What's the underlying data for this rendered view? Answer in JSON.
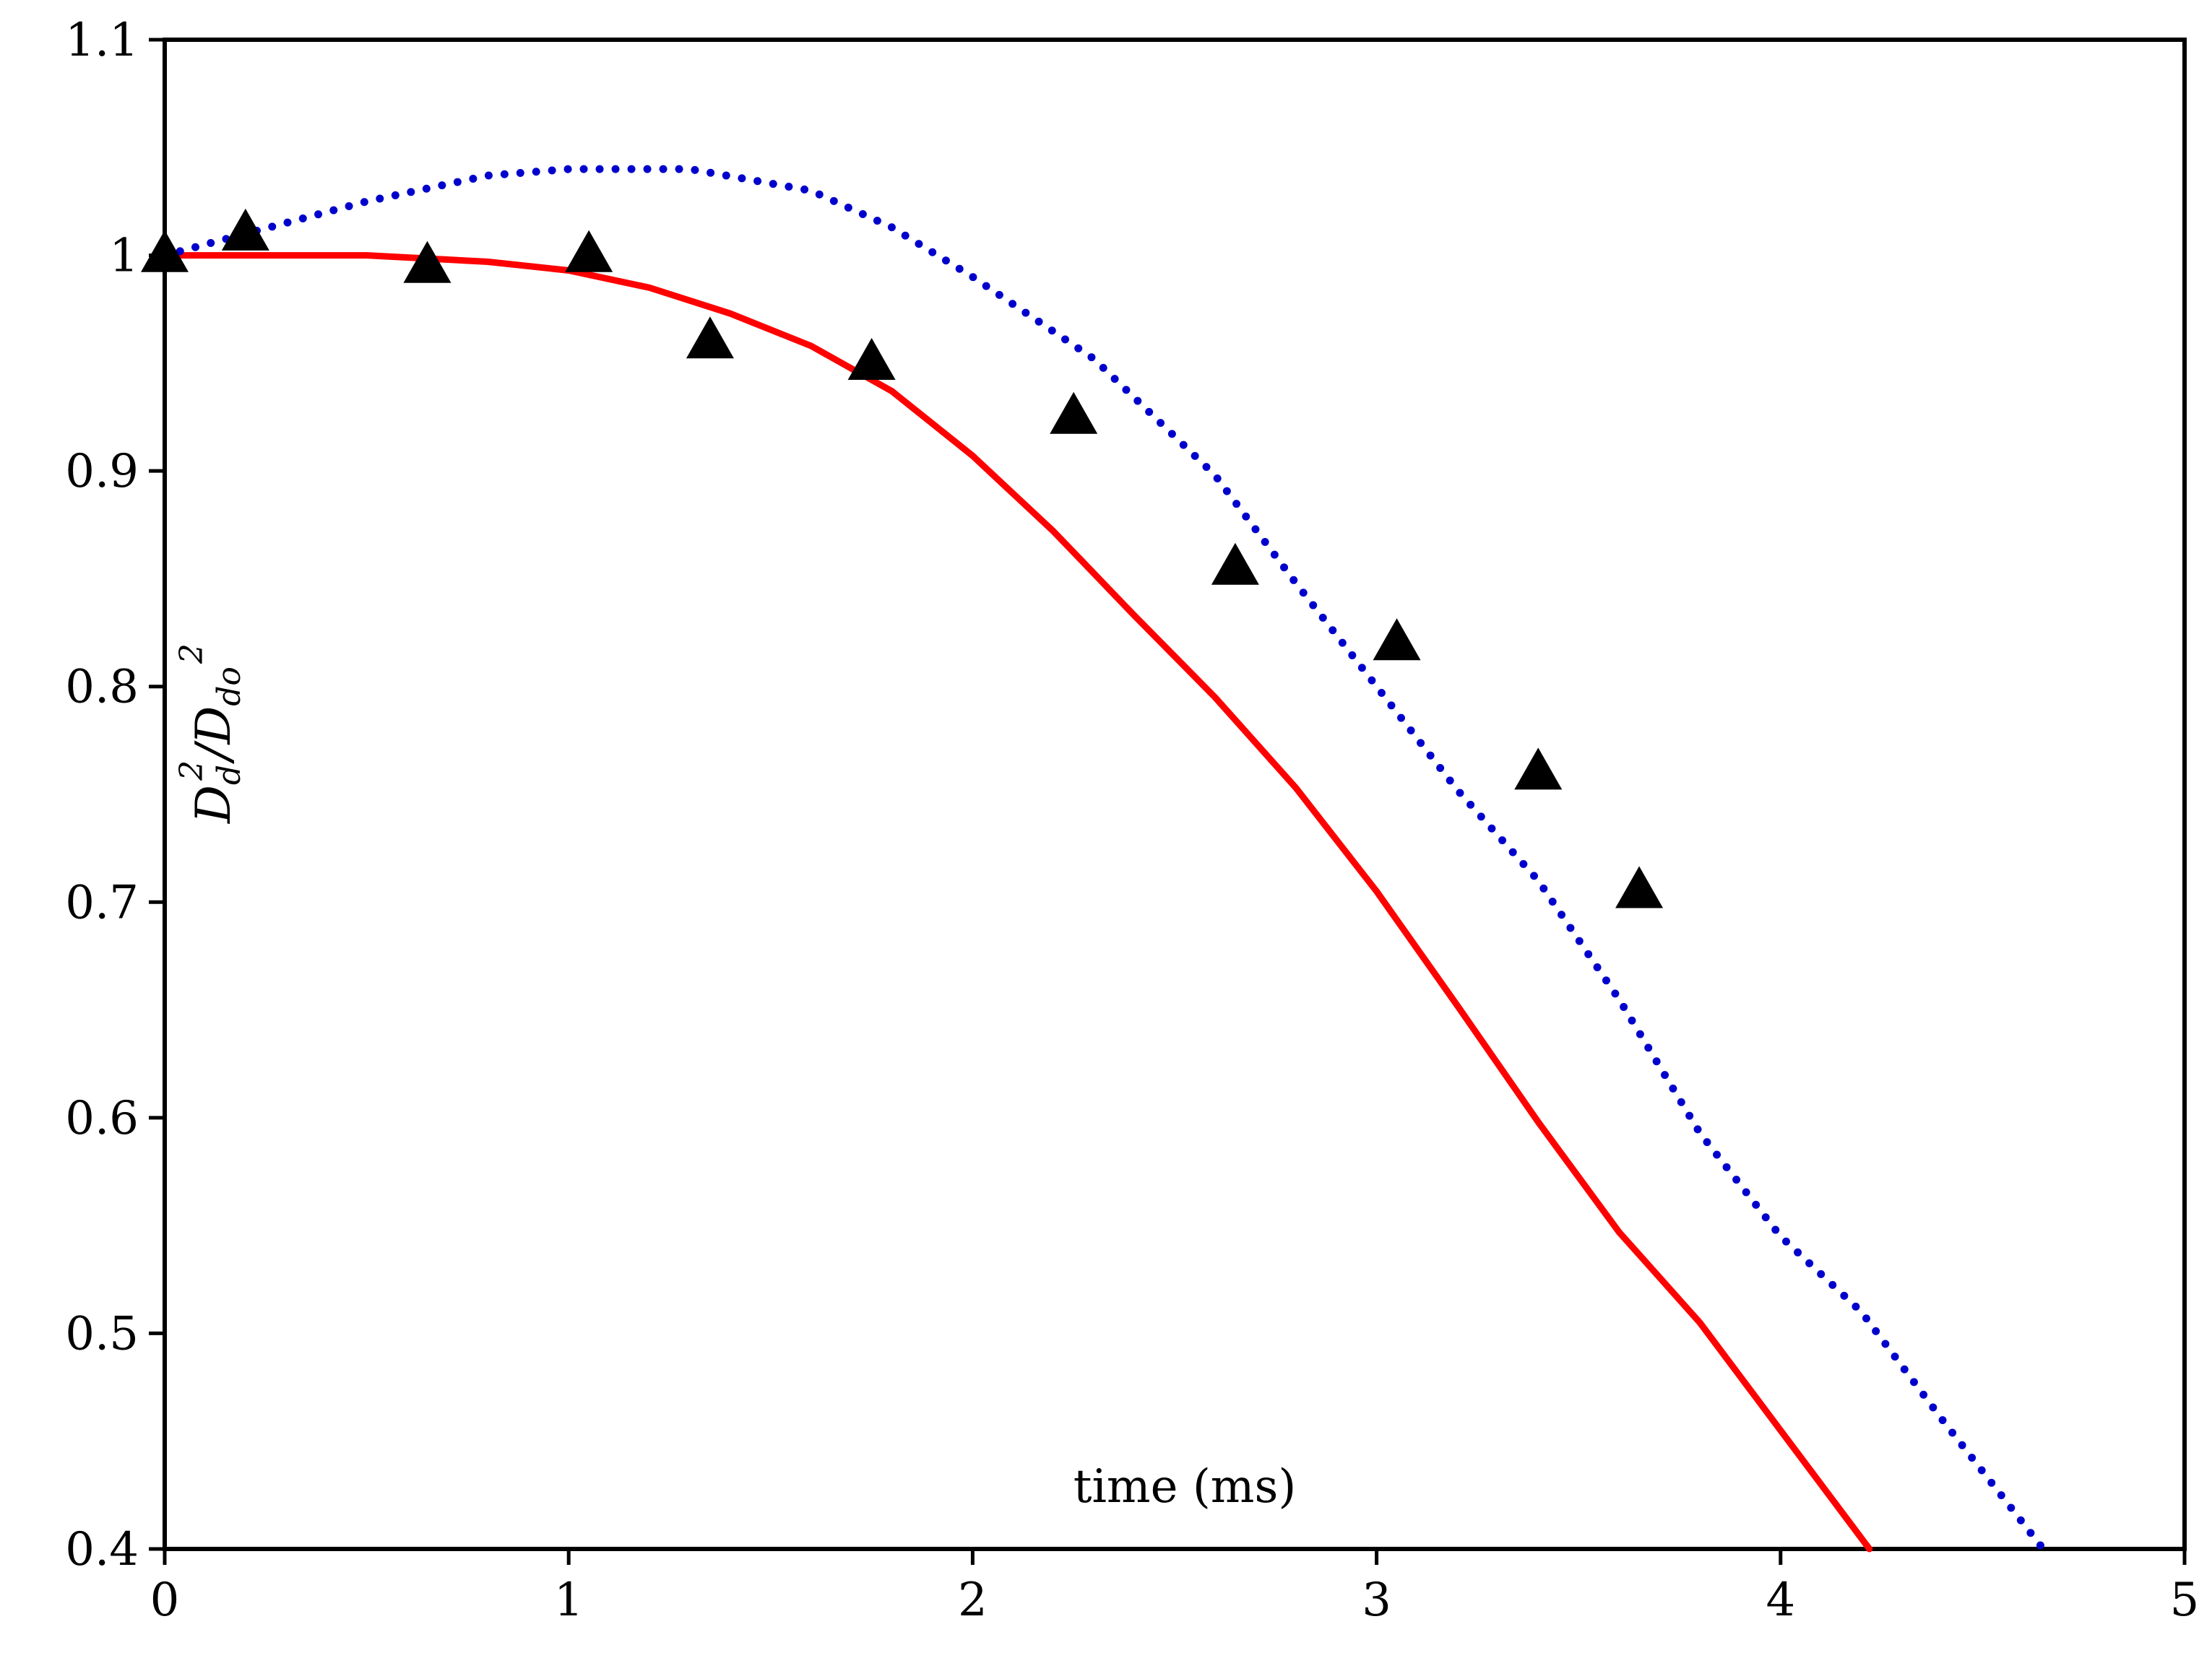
{
  "chart_data": {
    "type": "line",
    "title": "",
    "xlabel": "time (ms)",
    "ylabel": {
      "base": "D",
      "sub1": "d",
      "sup1": "2",
      "slash": "/",
      "base2": "D",
      "sub2": "do",
      "sup2": "2"
    },
    "xlim": [
      0,
      5
    ],
    "ylim": [
      0.4,
      1.1
    ],
    "xticks": [
      "0",
      "1",
      "2",
      "3",
      "4",
      "5"
    ],
    "yticks": [
      "0.4",
      "0.5",
      "0.6",
      "0.7",
      "0.8",
      "0.9",
      "1",
      "1.1"
    ],
    "grid": false,
    "legend": "none",
    "series": [
      {
        "name": "solid-red-line",
        "style": "solid",
        "color": "#ff0000",
        "x": [
          0,
          0.5,
          0.8,
          1.0,
          1.2,
          1.4,
          1.6,
          1.8,
          2.0,
          2.2,
          2.4,
          2.6,
          2.8,
          3.0,
          3.2,
          3.4,
          3.6,
          3.8,
          4.0,
          4.22
        ],
        "y": [
          1.0,
          1.0,
          0.997,
          0.993,
          0.985,
          0.973,
          0.958,
          0.937,
          0.907,
          0.872,
          0.833,
          0.795,
          0.753,
          0.705,
          0.652,
          0.598,
          0.547,
          0.505,
          0.455,
          0.4
        ]
      },
      {
        "name": "dotted-blue-line",
        "style": "dotted",
        "color": "#0000cc",
        "x": [
          0,
          0.2,
          0.5,
          0.8,
          1.0,
          1.3,
          1.6,
          1.8,
          2.0,
          2.3,
          2.6,
          2.8,
          3.0,
          3.2,
          3.4,
          3.6,
          3.8,
          4.0,
          4.2,
          4.4,
          4.65
        ],
        "y": [
          1.0,
          1.01,
          1.025,
          1.037,
          1.04,
          1.04,
          1.03,
          1.013,
          0.99,
          0.952,
          0.898,
          0.848,
          0.8,
          0.752,
          0.71,
          0.655,
          0.593,
          0.545,
          0.51,
          0.46,
          0.4
        ]
      },
      {
        "name": "experimental-triangles",
        "style": "marker",
        "marker": "triangle",
        "color": "#000000",
        "x": [
          0,
          0.2,
          0.65,
          1.05,
          1.35,
          1.75,
          2.25,
          2.65,
          3.05,
          3.4,
          3.65
        ],
        "y": [
          1.0,
          1.01,
          0.995,
          1.0,
          0.96,
          0.95,
          0.925,
          0.855,
          0.82,
          0.76,
          0.705
        ]
      }
    ],
    "colors": {
      "axis": "#000000",
      "background": "#ffffff"
    }
  }
}
